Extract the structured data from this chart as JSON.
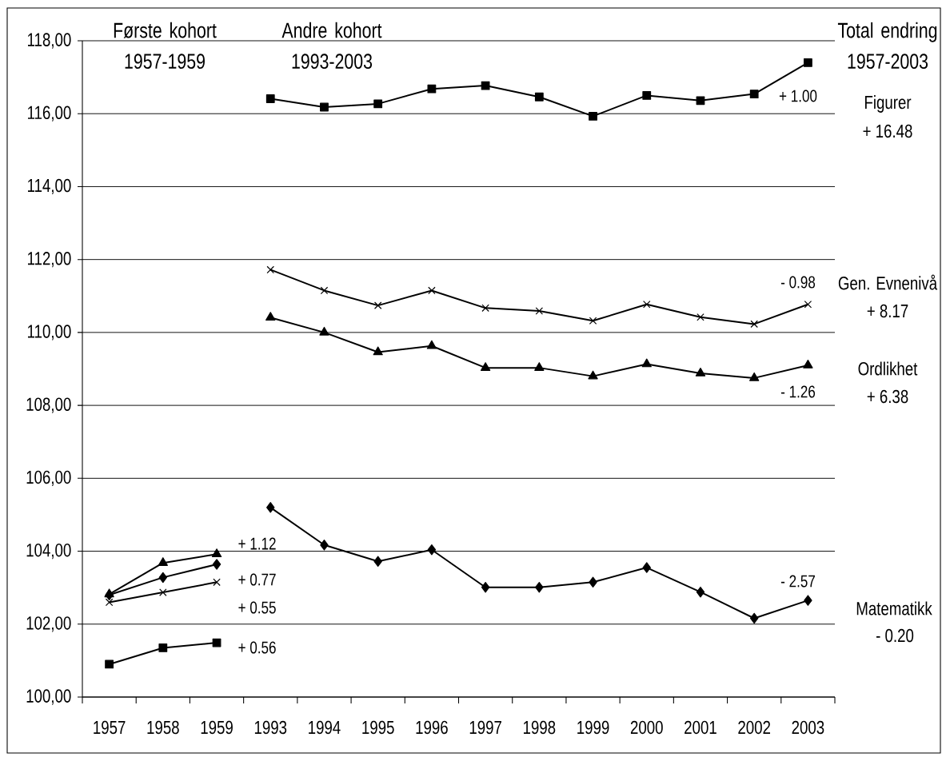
{
  "chart_data": {
    "type": "line",
    "categories": [
      "1957",
      "1958",
      "1959",
      "1993",
      "1994",
      "1995",
      "1996",
      "1997",
      "1998",
      "1999",
      "2000",
      "2001",
      "2002",
      "2003"
    ],
    "series": [
      {
        "name": "Figurer",
        "color": "#000000",
        "marker": "square",
        "values": [
          null,
          null,
          null,
          116.41,
          116.18,
          116.27,
          116.68,
          116.77,
          116.46,
          115.93,
          116.5,
          116.36,
          116.54,
          117.4
        ]
      },
      {
        "name": "Gen. Evnenivå",
        "color": "#000000",
        "marker": "cross",
        "values": [
          null,
          null,
          null,
          111.72,
          111.15,
          110.74,
          111.15,
          110.67,
          110.59,
          110.32,
          110.77,
          110.42,
          110.23,
          110.77
        ]
      },
      {
        "name": "Ordlikhet",
        "color": "#000000",
        "marker": "triangle",
        "values": [
          null,
          null,
          null,
          110.41,
          110.0,
          109.46,
          109.63,
          109.03,
          109.03,
          108.8,
          109.13,
          108.88,
          108.75,
          109.1
        ]
      },
      {
        "name": "Matematikk",
        "color": "#000000",
        "marker": "diamond",
        "values": [
          null,
          null,
          null,
          105.2,
          104.17,
          103.72,
          104.04,
          103.01,
          103.01,
          103.15,
          103.55,
          102.88,
          102.16,
          102.65
        ]
      },
      {
        "color": "#000000",
        "marker": "square",
        "values": [
          100.9,
          101.35,
          101.49,
          null,
          null,
          null,
          null,
          null,
          null,
          null,
          null,
          null,
          null,
          null
        ]
      },
      {
        "color": "#000000",
        "marker": "cross",
        "values": [
          102.6,
          102.87,
          103.15,
          null,
          null,
          null,
          null,
          null,
          null,
          null,
          null,
          null,
          null,
          null
        ]
      },
      {
        "color": "#000000",
        "marker": "triangle",
        "values": [
          102.82,
          103.68,
          103.92,
          null,
          null,
          null,
          null,
          null,
          null,
          null,
          null,
          null,
          null,
          null
        ]
      },
      {
        "color": "#000000",
        "marker": "diamond",
        "values": [
          102.8,
          103.28,
          103.64,
          null,
          null,
          null,
          null,
          null,
          null,
          null,
          null,
          null,
          null,
          null
        ]
      }
    ],
    "ylim": [
      100,
      118
    ],
    "yticks": [
      {
        "value": 100,
        "label": "100,00"
      },
      {
        "value": 102,
        "label": "102,00"
      },
      {
        "value": 104,
        "label": "104,00"
      },
      {
        "value": 106,
        "label": "106,00"
      },
      {
        "value": 108,
        "label": "108,00"
      },
      {
        "value": 110,
        "label": "110,00"
      },
      {
        "value": 112,
        "label": "112,00"
      },
      {
        "value": 114,
        "label": "114,00"
      },
      {
        "value": 116,
        "label": "116,00"
      },
      {
        "value": 118,
        "label": "118,00"
      }
    ],
    "grid": "y",
    "legend": false,
    "line_style": "solid",
    "annotations": [
      "Første kohort 1957-1959",
      "Andre kohort 1993-2003",
      "Total endring 1957-2003",
      "+ 16.48",
      "+ 8.17",
      "+ 6.38",
      "- 0.20",
      "+ 1.12",
      "+ 0.77",
      "+ 0.55",
      "+ 0.56",
      "+ 1.00",
      "- 0.98",
      "- 1.26",
      "- 2.57"
    ]
  }
}
